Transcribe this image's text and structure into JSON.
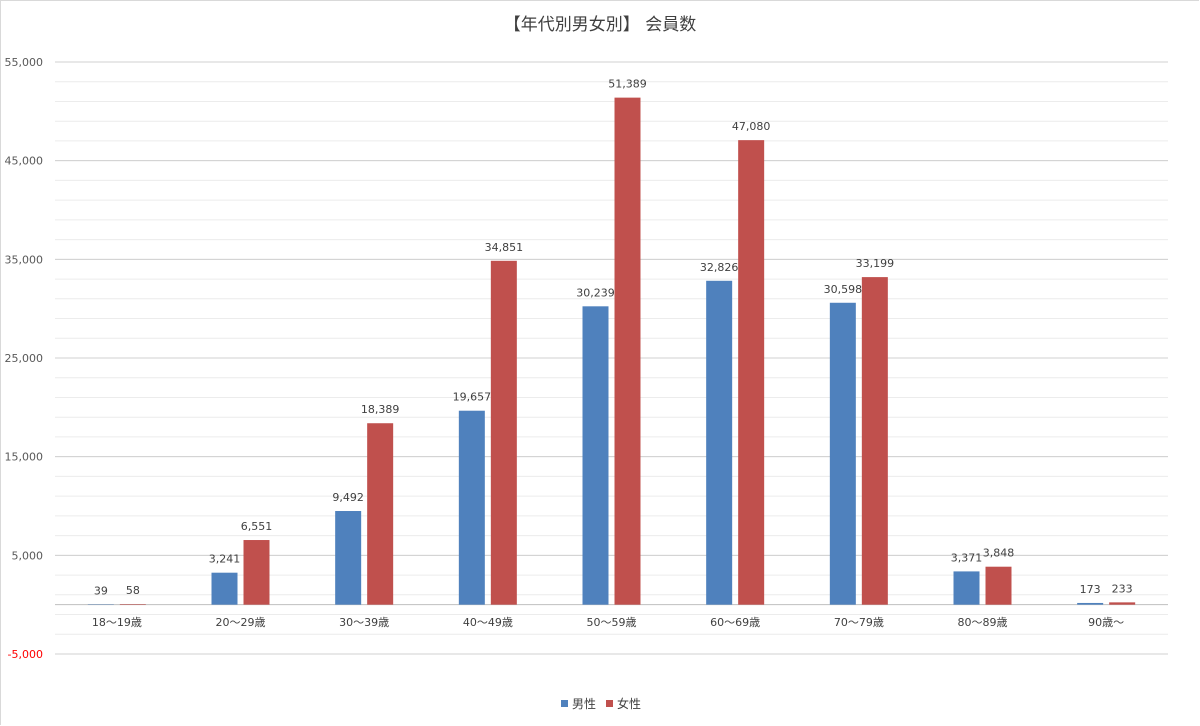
{
  "chart_data": {
    "type": "bar",
    "title": "【年代別男女別】 会員数",
    "categories": [
      "18～19歳",
      "20～29歳",
      "30～39歳",
      "40～49歳",
      "50～59歳",
      "60～69歳",
      "70～79歳",
      "80～89歳",
      "90歳～"
    ],
    "series": [
      {
        "name": "男性",
        "color": "#4f81bd",
        "values": [
          39,
          3241,
          9492,
          19657,
          30239,
          32826,
          30598,
          3371,
          173
        ]
      },
      {
        "name": "女性",
        "color": "#c0504d",
        "values": [
          58,
          6551,
          18389,
          34851,
          51389,
          47080,
          33199,
          3848,
          233
        ]
      }
    ],
    "data_labels": [
      [
        "39",
        "3,241",
        "9,492",
        "19,657",
        "30,239",
        "32,826",
        "30,598",
        "3,371",
        "173"
      ],
      [
        "58",
        "6,551",
        "18,389",
        "34,851",
        "51,389",
        "47,080",
        "33,199",
        "3,848",
        "233"
      ]
    ],
    "ylim": [
      -5000,
      55000
    ],
    "y_ticks": [
      {
        "value": 55000,
        "label": "55,000"
      },
      {
        "value": 45000,
        "label": "45,000"
      },
      {
        "value": 35000,
        "label": "35,000"
      },
      {
        "value": 25000,
        "label": "25,000"
      },
      {
        "value": 15000,
        "label": "15,000"
      },
      {
        "value": 5000,
        "label": "5,000"
      },
      {
        "value": -5000,
        "label": "-5,000",
        "color": "#ff0000"
      }
    ],
    "minor_grid_step": 2000,
    "grid": true,
    "legend_position": "bottom",
    "xlabel": "",
    "ylabel": ""
  }
}
